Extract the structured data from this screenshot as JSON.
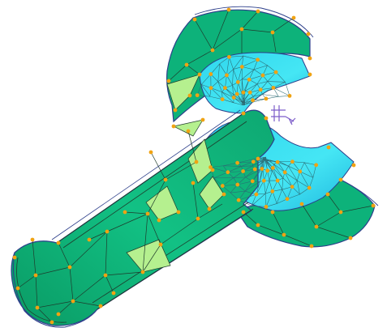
{
  "viewport": {
    "background": "#ffffff"
  },
  "model": {
    "shaft_color": "#0fb879",
    "shaft_light_color": "#b5f08f",
    "flange_color": "#0db27a",
    "socket_color": "#3fe4f0",
    "socket_deep_color": "#25c6e6",
    "mesh_line_color": "#1f3b2c",
    "socket_mesh_color": "#2b6b74",
    "node_color": "#f0a313",
    "outline_color": "#2c3e8a",
    "triad_color": "#7c5cc9"
  },
  "icons": {
    "coordinate_triad": "axis-triad-icon"
  }
}
